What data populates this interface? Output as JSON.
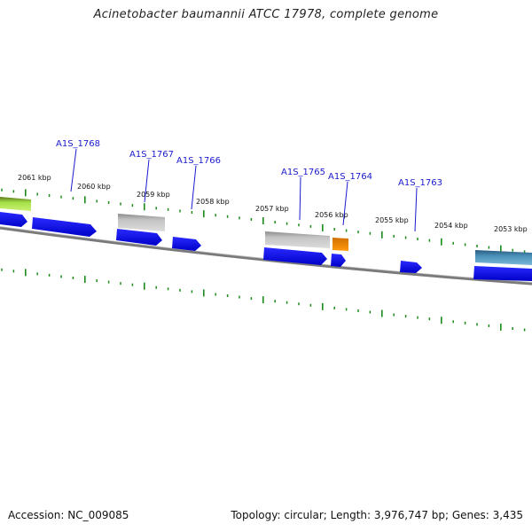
{
  "title": "Acinetobacter baumannii ATCC 17978, complete genome",
  "footer": {
    "accession": "Accession: NC_009085",
    "summary": "Topology: circular; Length: 3,976,747 bp; Genes: 3,435"
  },
  "colors": {
    "cds": "#1010e0",
    "pseudo": "#b8b8b8",
    "rna": "#f08a00",
    "trna": "#4a8ab0",
    "rrna": "#8fd14a",
    "tick": "#1a8a1a",
    "backbone": "#808080",
    "gene_label": "#1a1acc"
  },
  "kbp_labels": [
    "2061 kbp",
    "2060 kbp",
    "2059 kbp",
    "2058 kbp",
    "2057 kbp",
    "2056 kbp",
    "2055 kbp",
    "2054 kbp",
    "2053 kbp"
  ],
  "gene_labels": [
    "A1S_1768",
    "A1S_1767",
    "A1S_1766",
    "A1S_1765",
    "A1S_1764",
    "A1S_1763"
  ]
}
